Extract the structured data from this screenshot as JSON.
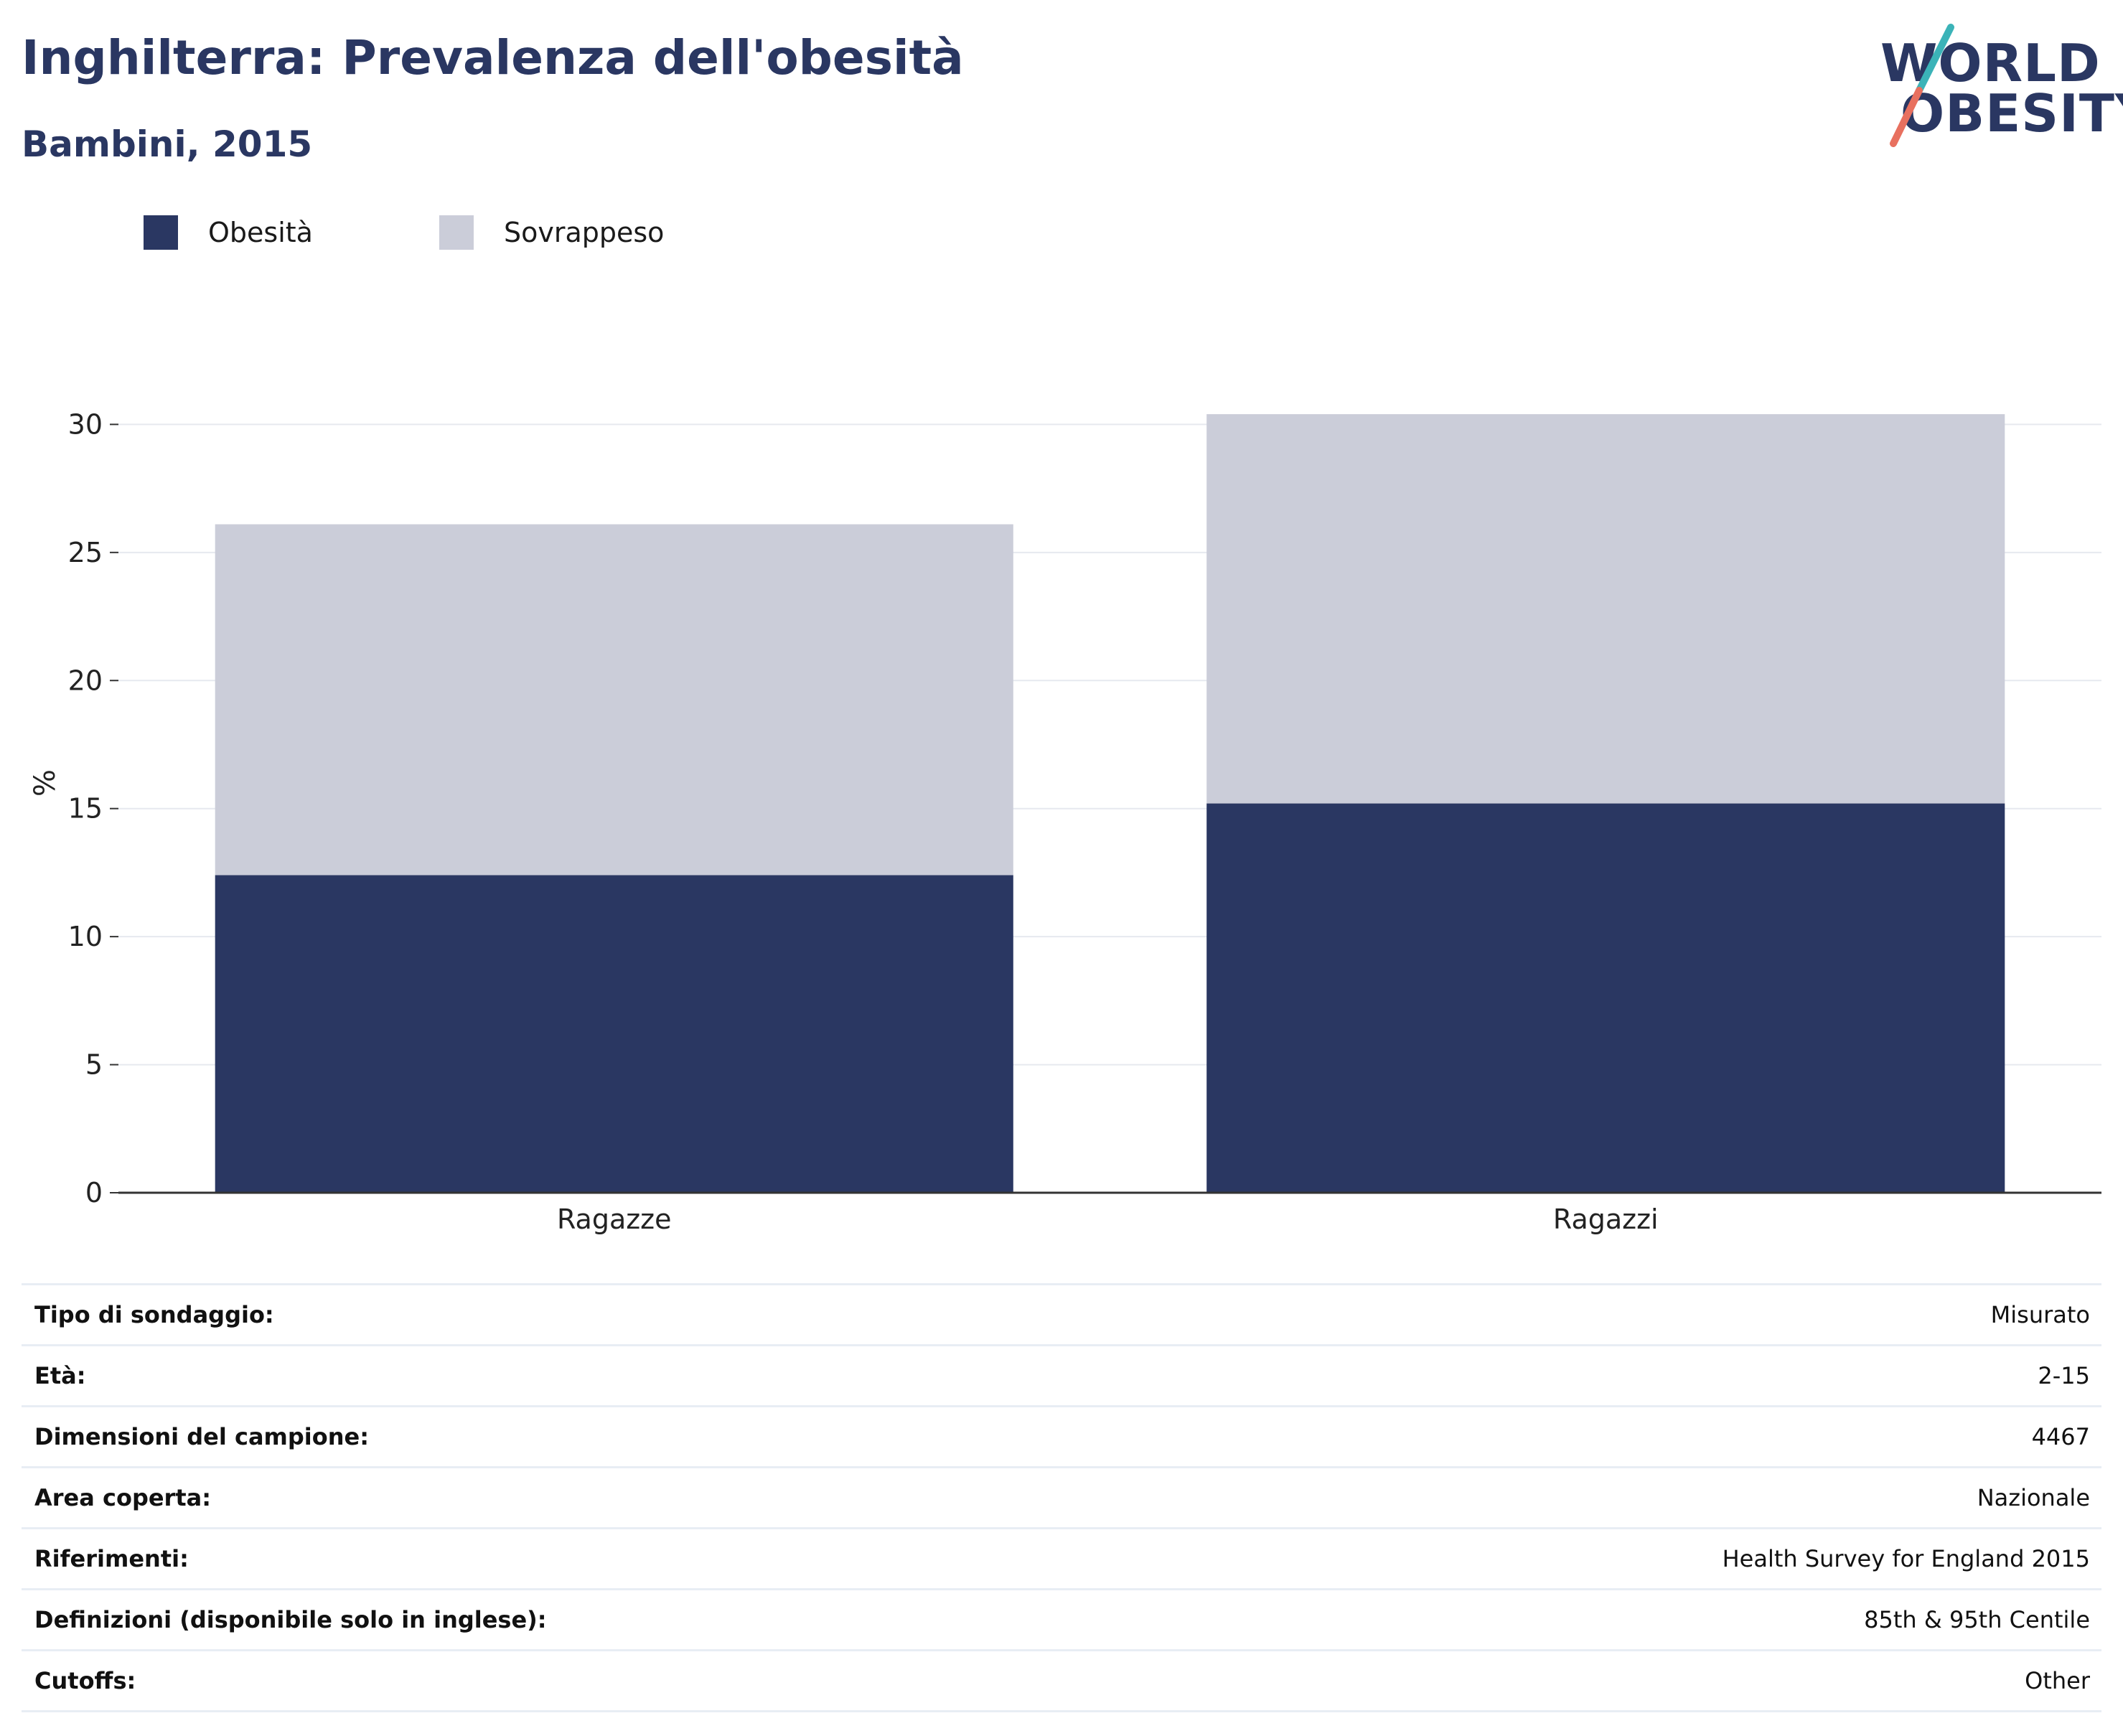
{
  "header": {
    "title": "Inghilterra: Prevalenza dell'obesità",
    "subtitle": "Bambini, 2015"
  },
  "logo": {
    "line1": "WORLD",
    "line2": "OBESITY",
    "colors": {
      "text": "#2a3762",
      "slash_top": "#3bb3b8",
      "slash_bottom": "#e8705f"
    }
  },
  "chart_data": {
    "type": "bar",
    "stacked": true,
    "categories": [
      "Ragazze",
      "Ragazzi"
    ],
    "series": [
      {
        "name": "Obesità",
        "color": "#2a3762",
        "values": [
          12.4,
          15.2
        ]
      },
      {
        "name": "Sovrappeso",
        "color": "#cbcdd9",
        "values": [
          13.7,
          15.2
        ]
      }
    ],
    "ylabel": "%",
    "ylim": [
      0,
      32
    ],
    "yticks": [
      0,
      5,
      10,
      15,
      20,
      25,
      30
    ],
    "grid": true,
    "legend": "top-left"
  },
  "table": {
    "rows": [
      {
        "label": "Tipo di sondaggio:",
        "value": "Misurato"
      },
      {
        "label": "Età:",
        "value": "2-15"
      },
      {
        "label": "Dimensioni del campione:",
        "value": "4467"
      },
      {
        "label": "Area coperta:",
        "value": "Nazionale"
      },
      {
        "label": "Riferimenti:",
        "value": "Health Survey for England 2015"
      },
      {
        "label": "Definizioni (disponibile solo in inglese):",
        "value": "85th & 95th Centile"
      },
      {
        "label": "Cutoffs:",
        "value": "Other"
      }
    ]
  }
}
